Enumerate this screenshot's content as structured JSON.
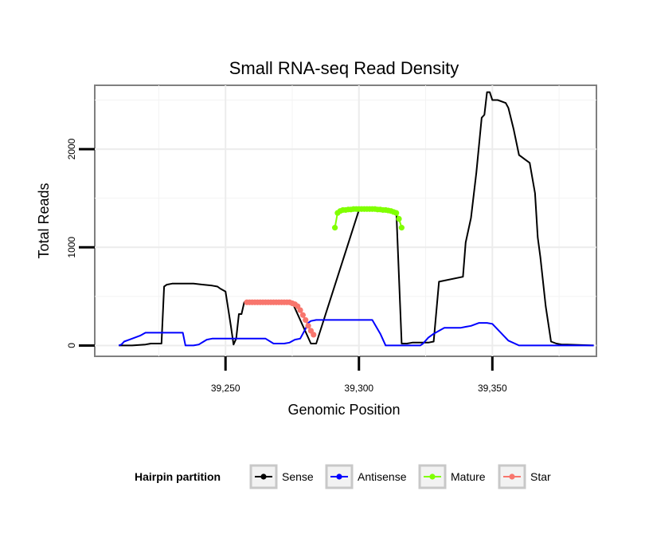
{
  "chart_data": {
    "type": "line",
    "title": "Small RNA-seq Read Density",
    "xlabel": "Genomic Position",
    "ylabel": "Total Reads",
    "xlim": [
      39201,
      39389
    ],
    "ylim": [
      -110,
      2650
    ],
    "x_ticks": [
      39250,
      39300,
      39350
    ],
    "x_tick_labels": [
      "39,250",
      "39,300",
      "39,350"
    ],
    "y_ticks": [
      0,
      1000,
      2000
    ],
    "y_tick_labels": [
      "0",
      "1000",
      "2000"
    ],
    "grid": true,
    "legend": {
      "title": "Hairpin partition",
      "position": "bottom",
      "entries": [
        {
          "label": "Sense",
          "color": "#000000"
        },
        {
          "label": "Antisense",
          "color": "#0000ff"
        },
        {
          "label": "Mature",
          "color": "#80ff00"
        },
        {
          "label": "Star",
          "color": "#f8766d"
        }
      ]
    },
    "series": [
      {
        "name": "Sense",
        "color": "#000000",
        "style": "line",
        "x": [
          39210,
          39215,
          39220,
          39222,
          39226,
          39227,
          39228,
          39230,
          39238,
          39245,
          39247,
          39248,
          39250,
          39252,
          39253,
          39254,
          39255,
          39256,
          39257,
          39258,
          39259,
          39260,
          39275,
          39282,
          39284,
          39300,
          39314,
          39316,
          39318,
          39320,
          39322,
          39324,
          39326,
          39328,
          39330,
          39339,
          39340,
          39342,
          39344,
          39346,
          39347,
          39348,
          39349,
          39350,
          39352,
          39355,
          39356,
          39358,
          39360,
          39361,
          39362,
          39364,
          39366,
          39367,
          39368,
          39370,
          39372,
          39374,
          39376,
          39378,
          39388
        ],
        "y": [
          0,
          0,
          10,
          20,
          20,
          600,
          620,
          630,
          630,
          610,
          600,
          580,
          550,
          200,
          10,
          70,
          320,
          320,
          440,
          440,
          440,
          440,
          440,
          20,
          20,
          1380,
          1370,
          20,
          20,
          30,
          30,
          30,
          30,
          40,
          650,
          700,
          1050,
          1300,
          1760,
          2320,
          2350,
          2580,
          2580,
          2500,
          2500,
          2470,
          2420,
          2200,
          1940,
          1920,
          1900,
          1860,
          1550,
          1100,
          900,
          400,
          40,
          20,
          10,
          10,
          0
        ]
      },
      {
        "name": "Antisense",
        "color": "#0000ff",
        "style": "line",
        "x": [
          39210,
          39211,
          39212,
          39214,
          39218,
          39220,
          39234,
          39235,
          39238,
          39240,
          39243,
          39245,
          39250,
          39255,
          39260,
          39265,
          39268,
          39272,
          39274,
          39276,
          39278,
          39280,
          39281,
          39282,
          39284,
          39286,
          39288,
          39290,
          39292,
          39294,
          39296,
          39298,
          39300,
          39302,
          39305,
          39308,
          39310,
          39312,
          39314,
          39316,
          39318,
          39320,
          39323,
          39324,
          39326,
          39328,
          39330,
          39332,
          39335,
          39338,
          39340,
          39342,
          39345,
          39348,
          39350,
          39356,
          39360,
          39365,
          39370,
          39380,
          39388
        ],
        "y": [
          0,
          10,
          40,
          60,
          100,
          130,
          130,
          0,
          0,
          10,
          60,
          70,
          70,
          70,
          70,
          70,
          20,
          20,
          30,
          60,
          70,
          170,
          230,
          250,
          260,
          260,
          260,
          260,
          260,
          260,
          260,
          260,
          260,
          260,
          260,
          120,
          0,
          0,
          0,
          0,
          0,
          0,
          0,
          20,
          80,
          120,
          150,
          180,
          180,
          180,
          190,
          200,
          230,
          230,
          220,
          50,
          0,
          0,
          0,
          0,
          0
        ]
      },
      {
        "name": "Mature",
        "color": "#80ff00",
        "style": "points",
        "x": [
          39291,
          39292,
          39293,
          39294,
          39295,
          39296,
          39297,
          39298,
          39299,
          39300,
          39301,
          39302,
          39303,
          39304,
          39305,
          39306,
          39307,
          39308,
          39309,
          39310,
          39311,
          39312,
          39313,
          39314,
          39315,
          39316
        ],
        "y": [
          1200,
          1350,
          1370,
          1380,
          1380,
          1385,
          1385,
          1390,
          1390,
          1390,
          1390,
          1390,
          1390,
          1390,
          1390,
          1390,
          1385,
          1385,
          1380,
          1380,
          1375,
          1370,
          1360,
          1350,
          1290,
          1200
        ]
      },
      {
        "name": "Star",
        "color": "#f8766d",
        "style": "points",
        "x": [
          39258,
          39259,
          39260,
          39261,
          39262,
          39263,
          39264,
          39265,
          39266,
          39267,
          39268,
          39269,
          39270,
          39271,
          39272,
          39273,
          39274,
          39275,
          39276,
          39277,
          39278,
          39279,
          39280,
          39281,
          39282,
          39283
        ],
        "y": [
          440,
          440,
          440,
          440,
          440,
          440,
          440,
          440,
          440,
          440,
          440,
          440,
          440,
          440,
          440,
          440,
          440,
          430,
          420,
          400,
          360,
          310,
          260,
          200,
          150,
          110
        ]
      }
    ]
  }
}
